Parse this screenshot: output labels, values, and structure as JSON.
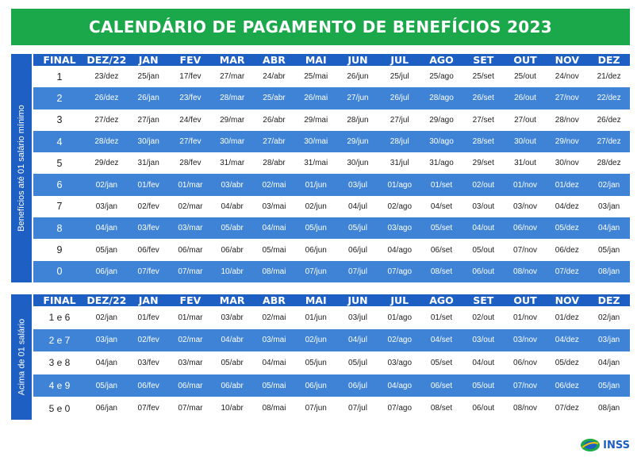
{
  "title": "CALENDÁRIO DE PAGAMENTO DE BENEFÍCIOS 2023",
  "logo_text": "INSS",
  "headers": [
    "FINAL",
    "DEZ/22",
    "JAN",
    "FEV",
    "MAR",
    "ABR",
    "MAI",
    "JUN",
    "JUL",
    "AGO",
    "SET",
    "OUT",
    "NOV",
    "DEZ"
  ],
  "section1": {
    "side_label": "Benefícios até 01 salário mínimo",
    "rows": [
      [
        "1",
        "23/dez",
        "25/jan",
        "17/fev",
        "27/mar",
        "24/abr",
        "25/mai",
        "26/jun",
        "25/jul",
        "25/ago",
        "25/set",
        "25/out",
        "24/nov",
        "21/dez"
      ],
      [
        "2",
        "26/dez",
        "26/jan",
        "23/fev",
        "28/mar",
        "25/abr",
        "26/mai",
        "27/jun",
        "26/jul",
        "28/ago",
        "26/set",
        "26/out",
        "27/nov",
        "22/dez"
      ],
      [
        "3",
        "27/dez",
        "27/jan",
        "24/fev",
        "29/mar",
        "26/abr",
        "29/mai",
        "28/jun",
        "27/jul",
        "29/ago",
        "27/set",
        "27/out",
        "28/nov",
        "26/dez"
      ],
      [
        "4",
        "28/dez",
        "30/jan",
        "27/fev",
        "30/mar",
        "27/abr",
        "30/mai",
        "29/jun",
        "28/jul",
        "30/ago",
        "28/set",
        "30/out",
        "29/nov",
        "27/dez"
      ],
      [
        "5",
        "29/dez",
        "31/jan",
        "28/fev",
        "31/mar",
        "28/abr",
        "31/mai",
        "30/jun",
        "31/jul",
        "31/ago",
        "29/set",
        "31/out",
        "30/nov",
        "28/dez"
      ],
      [
        "6",
        "02/jan",
        "01/fev",
        "01/mar",
        "03/abr",
        "02/mai",
        "01/jun",
        "03/jul",
        "01/ago",
        "01/set",
        "02/out",
        "01/nov",
        "01/dez",
        "02/jan"
      ],
      [
        "7",
        "03/jan",
        "02/fev",
        "02/mar",
        "04/abr",
        "03/mai",
        "02/jun",
        "04/jul",
        "02/ago",
        "04/set",
        "03/out",
        "03/nov",
        "04/dez",
        "03/jan"
      ],
      [
        "8",
        "04/jan",
        "03/fev",
        "03/mar",
        "05/abr",
        "04/mai",
        "05/jun",
        "05/jul",
        "03/ago",
        "05/set",
        "04/out",
        "06/nov",
        "05/dez",
        "04/jan"
      ],
      [
        "9",
        "05/jan",
        "06/fev",
        "06/mar",
        "06/abr",
        "05/mai",
        "06/jun",
        "06/jul",
        "04/ago",
        "06/set",
        "05/out",
        "07/nov",
        "06/dez",
        "05/jan"
      ],
      [
        "0",
        "06/jan",
        "07/fev",
        "07/mar",
        "10/abr",
        "08/mai",
        "07/jun",
        "07/jul",
        "07/ago",
        "08/set",
        "06/out",
        "08/nov",
        "07/dez",
        "08/jan"
      ]
    ]
  },
  "section2": {
    "side_label": "Acima de 01 salário",
    "rows": [
      [
        "1 e 6",
        "02/jan",
        "01/fev",
        "01/mar",
        "03/abr",
        "02/mai",
        "01/jun",
        "03/jul",
        "01/ago",
        "01/set",
        "02/out",
        "01/nov",
        "01/dez",
        "02/jan"
      ],
      [
        "2 e 7",
        "03/jan",
        "02/fev",
        "02/mar",
        "04/abr",
        "03/mai",
        "02/jun",
        "04/jul",
        "02/ago",
        "04/set",
        "03/out",
        "03/nov",
        "04/dez",
        "03/jan"
      ],
      [
        "3 e 8",
        "04/jan",
        "03/fev",
        "03/mar",
        "05/abr",
        "04/mai",
        "05/jun",
        "05/jul",
        "03/ago",
        "05/set",
        "04/out",
        "06/nov",
        "05/dez",
        "04/jan"
      ],
      [
        "4 e 9",
        "05/jan",
        "06/fev",
        "06/mar",
        "06/abr",
        "05/mai",
        "06/jun",
        "06/jul",
        "04/ago",
        "06/set",
        "05/out",
        "07/nov",
        "06/dez",
        "05/jan"
      ],
      [
        "5 e 0",
        "06/jan",
        "07/fev",
        "07/mar",
        "10/abr",
        "08/mai",
        "07/jun",
        "07/jul",
        "07/ago",
        "08/set",
        "06/out",
        "08/nov",
        "07/dez",
        "08/jan"
      ]
    ]
  },
  "colors": {
    "banner_green": "#1aa84a",
    "header_blue": "#1d5fc2",
    "stripe_blue": "#3f83d6",
    "row_white": "#ffffff"
  }
}
